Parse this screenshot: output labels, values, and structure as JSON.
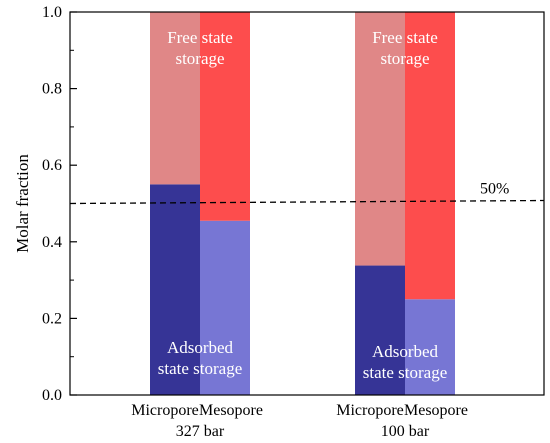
{
  "chart_data": {
    "type": "bar",
    "stacked": true,
    "ylabel": "Molar fraction",
    "ylim": [
      0,
      1.0
    ],
    "yticks": [
      "0.0",
      "0.2",
      "0.4",
      "0.6",
      "0.8",
      "1.0"
    ],
    "ytick_values": [
      0,
      0.2,
      0.4,
      0.6,
      0.8,
      1.0
    ],
    "categories": [
      "Micropore",
      "Mesopore",
      "Micropore",
      "Mesopore"
    ],
    "groups": [
      "327 bar",
      "100 bar"
    ],
    "series": [
      {
        "name": "Adsorbed state storage",
        "values": [
          0.55,
          0.455,
          0.338,
          0.25
        ],
        "colors": [
          "#363496",
          "#7776d4",
          "#363496",
          "#7776d4"
        ]
      },
      {
        "name": "Free state storage",
        "values": [
          0.45,
          0.545,
          0.662,
          0.75
        ],
        "colors": [
          "#e08787",
          "#fd4d4d",
          "#e08787",
          "#fd4d4d"
        ]
      }
    ],
    "reference_line": {
      "value": 0.5,
      "label": "50%",
      "style": "dashed"
    },
    "annotations": {
      "free_327": [
        "Free state",
        "storage"
      ],
      "adsorbed_327": [
        "Adsorbed",
        "state storage"
      ],
      "free_100": [
        "Free state",
        "storage"
      ],
      "adsorbed_100": [
        "Adsorbed",
        "state storage"
      ]
    },
    "grid": false,
    "legend": "none"
  }
}
